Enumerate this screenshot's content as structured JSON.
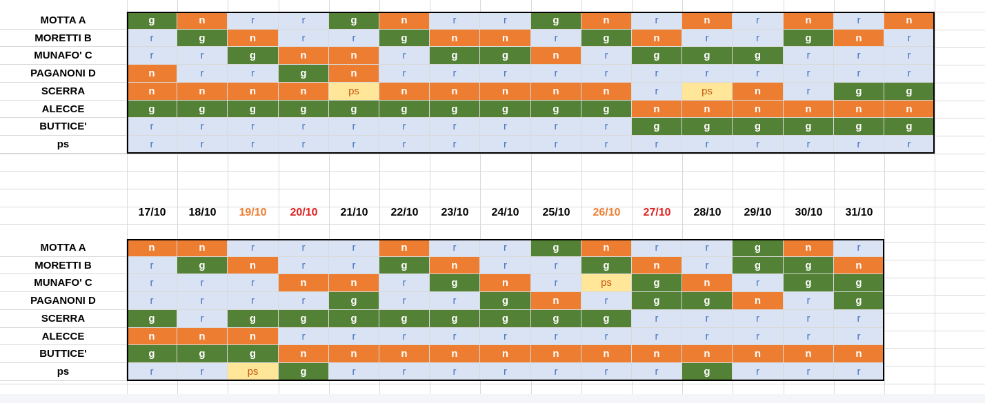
{
  "names": [
    "MOTTA A",
    "MORETTI B",
    "MUNAFO' C",
    "PAGANONI D",
    "SCERRA",
    "ALECCE",
    "BUTTICE'",
    "ps"
  ],
  "dates": [
    {
      "label": "17/10",
      "color": "#000000"
    },
    {
      "label": "18/10",
      "color": "#000000"
    },
    {
      "label": "19/10",
      "color": "#ed7d31"
    },
    {
      "label": "20/10",
      "color": "#e02020"
    },
    {
      "label": "21/10",
      "color": "#000000"
    },
    {
      "label": "22/10",
      "color": "#000000"
    },
    {
      "label": "23/10",
      "color": "#000000"
    },
    {
      "label": "24/10",
      "color": "#000000"
    },
    {
      "label": "25/10",
      "color": "#000000"
    },
    {
      "label": "26/10",
      "color": "#ed7d31"
    },
    {
      "label": "27/10",
      "color": "#e02020"
    },
    {
      "label": "28/10",
      "color": "#000000"
    },
    {
      "label": "29/10",
      "color": "#000000"
    },
    {
      "label": "30/10",
      "color": "#000000"
    },
    {
      "label": "31/10",
      "color": "#000000"
    }
  ],
  "colors": {
    "g": "#538135",
    "n": "#ed7d31",
    "r": "#dae3f3",
    "ps": "#ffe699"
  },
  "top_table": [
    [
      "g",
      "n",
      "r",
      "r",
      "g",
      "n",
      "r",
      "r",
      "g",
      "n",
      "r",
      "n",
      "r",
      "n",
      "r",
      "n"
    ],
    [
      "r",
      "g",
      "n",
      "r",
      "r",
      "g",
      "n",
      "n",
      "r",
      "g",
      "n",
      "r",
      "r",
      "g",
      "n",
      "r"
    ],
    [
      "r",
      "r",
      "g",
      "n",
      "n",
      "r",
      "g",
      "g",
      "n",
      "r",
      "g",
      "g",
      "g",
      "r",
      "r",
      "r"
    ],
    [
      "n",
      "r",
      "r",
      "g",
      "n",
      "r",
      "r",
      "r",
      "r",
      "r",
      "r",
      "r",
      "r",
      "r",
      "r",
      "r"
    ],
    [
      "n",
      "n",
      "n",
      "n",
      "ps",
      "n",
      "n",
      "n",
      "n",
      "n",
      "r",
      "ps",
      "n",
      "r",
      "g",
      "g"
    ],
    [
      "g",
      "g",
      "g",
      "g",
      "g",
      "g",
      "g",
      "g",
      "g",
      "g",
      "n",
      "n",
      "n",
      "n",
      "n",
      "n"
    ],
    [
      "r",
      "r",
      "r",
      "r",
      "r",
      "r",
      "r",
      "r",
      "r",
      "r",
      "g",
      "g",
      "g",
      "g",
      "g",
      "g"
    ],
    [
      "r",
      "r",
      "r",
      "r",
      "r",
      "r",
      "r",
      "r",
      "r",
      "r",
      "r",
      "r",
      "r",
      "r",
      "r",
      "r"
    ]
  ],
  "bottom_table": [
    [
      "n",
      "n",
      "r",
      "r",
      "r",
      "n",
      "r",
      "r",
      "g",
      "n",
      "r",
      "r",
      "g",
      "n",
      "r"
    ],
    [
      "r",
      "g",
      "n",
      "r",
      "r",
      "g",
      "n",
      "r",
      "r",
      "g",
      "n",
      "r",
      "g",
      "g",
      "n"
    ],
    [
      "r",
      "r",
      "r",
      "n",
      "n",
      "r",
      "g",
      "n",
      "r",
      "ps",
      "g",
      "n",
      "r",
      "g",
      "g"
    ],
    [
      "r",
      "r",
      "r",
      "r",
      "g",
      "r",
      "r",
      "g",
      "n",
      "r",
      "g",
      "g",
      "n",
      "r",
      "g"
    ],
    [
      "g",
      "r",
      "g",
      "g",
      "g",
      "g",
      "g",
      "g",
      "g",
      "g",
      "r",
      "r",
      "r",
      "r",
      "r"
    ],
    [
      "n",
      "n",
      "n",
      "r",
      "r",
      "r",
      "r",
      "r",
      "r",
      "r",
      "r",
      "r",
      "r",
      "r",
      "r"
    ],
    [
      "g",
      "g",
      "g",
      "n",
      "n",
      "n",
      "n",
      "n",
      "n",
      "n",
      "n",
      "n",
      "n",
      "n",
      "n"
    ],
    [
      "r",
      "r",
      "ps",
      "g",
      "r",
      "r",
      "r",
      "r",
      "r",
      "r",
      "r",
      "g",
      "r",
      "r",
      "r"
    ]
  ]
}
